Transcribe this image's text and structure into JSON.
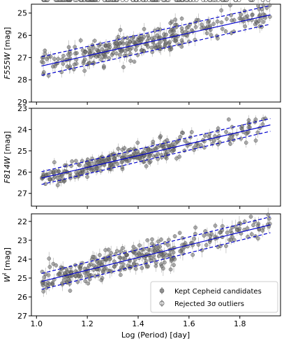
{
  "chart_data": {
    "type": "scatter",
    "shared_xlabel": "Log (Period) [day]",
    "xlim": [
      0.98,
      1.96
    ],
    "x_ticks": [
      1.0,
      1.2,
      1.4,
      1.6,
      1.8
    ],
    "x_tick_labels": [
      "1.0",
      "1.2",
      "1.4",
      "1.6",
      "1.8"
    ],
    "legend": {
      "placement": "lower-right of bottom panel",
      "entries": [
        {
          "label": "Kept Cepheid candidates",
          "marker": "filled-circle",
          "color": "#808080"
        },
        {
          "label": "Rejected 3σ outliers",
          "marker": "open-circle",
          "color": "#808080"
        }
      ]
    },
    "fit_line_color": "#0000cd",
    "panels": [
      {
        "ylabel_base": "F555W",
        "ylabel_unit": " [mag]",
        "ylim_inverted": [
          29.0,
          24.6
        ],
        "y_ticks": [
          25,
          26,
          27,
          28,
          29
        ],
        "y_tick_labels": [
          "25",
          "26",
          "27",
          "28",
          "29"
        ],
        "fit": {
          "x": [
            1.02,
            1.92
          ],
          "y": [
            27.38,
            25.08
          ],
          "band": 0.42
        },
        "scatter_sigma": 0.3,
        "n_kept": 310,
        "n_rejected": 40,
        "seed": 11
      },
      {
        "ylabel_base": "F814W",
        "ylabel_unit": " [mag]",
        "ylim_inverted": [
          27.6,
          23.0
        ],
        "y_ticks": [
          23,
          24,
          25,
          26,
          27
        ],
        "y_tick_labels": [
          "23",
          "24",
          "25",
          "26",
          "27"
        ],
        "fit": {
          "x": [
            1.02,
            1.92
          ],
          "y": [
            26.28,
            23.78
          ],
          "band": 0.3
        },
        "scatter_sigma": 0.24,
        "n_kept": 310,
        "n_rejected": 40,
        "seed": 23
      },
      {
        "ylabel_base": "W",
        "ylabel_sup": "I",
        "ylabel_unit": " [mag]",
        "ylim_inverted": [
          27.0,
          21.6
        ],
        "y_ticks": [
          22,
          23,
          24,
          25,
          26,
          27
        ],
        "y_tick_labels": [
          "22",
          "23",
          "24",
          "25",
          "26",
          "27"
        ],
        "fit": {
          "x": [
            1.02,
            1.92
          ],
          "y": [
            25.18,
            22.18
          ],
          "band": 0.42
        },
        "scatter_sigma": 0.38,
        "n_kept": 320,
        "n_rejected": 45,
        "seed": 37
      }
    ]
  }
}
